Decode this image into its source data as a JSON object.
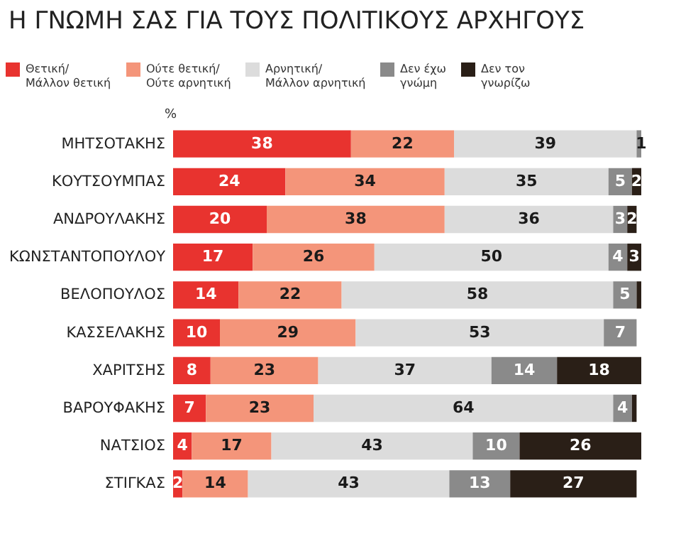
{
  "chart_data": {
    "type": "bar",
    "orientation": "horizontal",
    "stacked": true,
    "title": "Η ΓΝΩΜΗ ΣΑΣ ΓΙΑ ΤΟΥΣ ΠΟΛΙΤΙΚΟΥΣ ΑΡΧΗΓΟΥΣ",
    "annotations": [
      "%"
    ],
    "legend": "top left",
    "grid": false,
    "categories": [
      "ΜΗΤΣΟΤΑΚΗΣ",
      "ΚΟΥΤΣΟΥΜΠΑΣ",
      "ΑΝΔΡΟΥΛΑΚΗΣ",
      "ΚΩΝΣΤΑΝΤΟΠΟΥΛΟΥ",
      "ΒΕΛΟΠΟΥΛΟΣ",
      "ΚΑΣΣΕΛΑΚΗΣ",
      "ΧΑΡΙΤΣΗΣ",
      "ΒΑΡΟΥΦΑΚΗΣ",
      "ΝΑΤΣΙΟΣ",
      "ΣΤΙΓΚΑΣ"
    ],
    "series": [
      {
        "name": "Θετική/\nΜάλλον θετική",
        "color": "#e8332f",
        "values": [
          38,
          24,
          20,
          17,
          14,
          10,
          8,
          7,
          4,
          2
        ],
        "value_labels": [
          "38",
          "24",
          "20",
          "17",
          "14",
          "10",
          "8",
          "7",
          "4",
          "2"
        ]
      },
      {
        "name": "Ούτε θετική/\nΟύτε αρνητική",
        "color": "#f4957a",
        "values": [
          22,
          34,
          38,
          26,
          22,
          29,
          23,
          23,
          17,
          14
        ],
        "value_labels": [
          "22",
          "34",
          "38",
          "26",
          "22",
          "29",
          "23",
          "23",
          "17",
          "14"
        ]
      },
      {
        "name": "Αρνητική/\nΜάλλον αρνητική",
        "color": "#dcdcdc",
        "values": [
          39,
          35,
          36,
          50,
          58,
          53,
          37,
          64,
          43,
          43
        ],
        "value_labels": [
          "39",
          "35",
          "36",
          "50",
          "58",
          "53",
          "37",
          "64",
          "43",
          "43"
        ]
      },
      {
        "name": "Δεν έχω\nγνώμη",
        "color": "#8a8a8a",
        "values": [
          1,
          5,
          3,
          4,
          5,
          7,
          14,
          4,
          10,
          13
        ],
        "value_labels": [
          "1",
          "5",
          "3",
          "4",
          "5",
          "7",
          "14",
          "4",
          "10",
          "13"
        ]
      },
      {
        "name": "Δεν τον\nγνωρίζω",
        "color": "#2a1f17",
        "values": [
          null,
          2,
          2,
          3,
          1,
          null,
          18,
          1,
          26,
          27
        ],
        "value_labels": [
          null,
          "2",
          "2",
          "3",
          null,
          null,
          "18",
          null,
          "26",
          "27"
        ]
      }
    ]
  }
}
